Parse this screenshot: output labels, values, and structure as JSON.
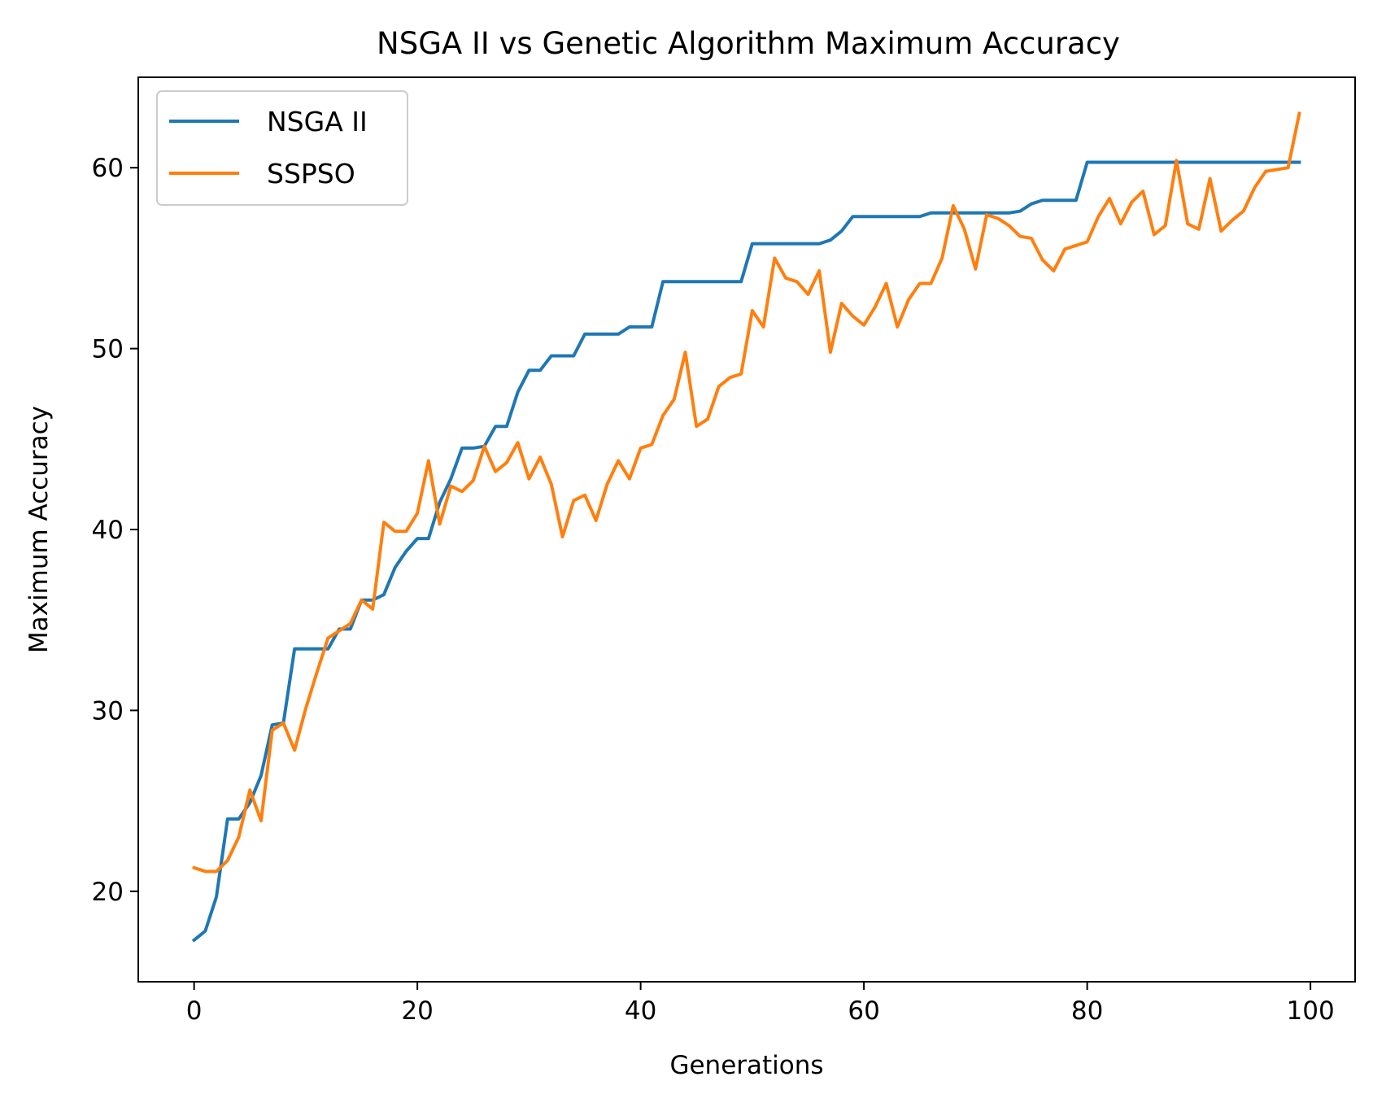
{
  "colors": {
    "nsga": "#1f77b4",
    "sspso": "#ff7f0e",
    "axis": "#000000",
    "background": "#ffffff",
    "legend_border": "#cccccc"
  },
  "chart_data": {
    "type": "line",
    "title": "NSGA II vs Genetic Algorithm Maximum Accuracy",
    "xlabel": "Generations",
    "ylabel": "Maximum Accuracy",
    "xlim": [
      -5,
      104
    ],
    "ylim": [
      15,
      65
    ],
    "xticks": [
      0,
      20,
      40,
      60,
      80,
      100
    ],
    "yticks": [
      20,
      30,
      40,
      50,
      60
    ],
    "grid": false,
    "legend_position": "top-left",
    "x": [
      0,
      1,
      2,
      3,
      4,
      5,
      6,
      7,
      8,
      9,
      10,
      11,
      12,
      13,
      14,
      15,
      16,
      17,
      18,
      19,
      20,
      21,
      22,
      23,
      24,
      25,
      26,
      27,
      28,
      29,
      30,
      31,
      32,
      33,
      34,
      35,
      36,
      37,
      38,
      39,
      40,
      41,
      42,
      43,
      44,
      45,
      46,
      47,
      48,
      49,
      50,
      51,
      52,
      53,
      54,
      55,
      56,
      57,
      58,
      59,
      60,
      61,
      62,
      63,
      64,
      65,
      66,
      67,
      68,
      69,
      70,
      71,
      72,
      73,
      74,
      75,
      76,
      77,
      78,
      79,
      80,
      81,
      82,
      83,
      84,
      85,
      86,
      87,
      88,
      89,
      90,
      91,
      92,
      93,
      94,
      95,
      96,
      97,
      98,
      99
    ],
    "series": [
      {
        "name": "NSGA II",
        "color": "#1f77b4",
        "values": [
          17.3,
          17.8,
          19.7,
          24.0,
          24.0,
          24.9,
          26.4,
          29.2,
          29.3,
          33.4,
          33.4,
          33.4,
          33.4,
          34.5,
          34.5,
          36.1,
          36.1,
          36.4,
          37.9,
          38.8,
          39.5,
          39.5,
          41.5,
          42.8,
          44.5,
          44.5,
          44.6,
          45.7,
          45.7,
          47.6,
          48.8,
          48.8,
          49.6,
          49.6,
          49.6,
          50.8,
          50.8,
          50.8,
          50.8,
          51.2,
          51.2,
          51.2,
          53.7,
          53.7,
          53.7,
          53.7,
          53.7,
          53.7,
          53.7,
          53.7,
          55.8,
          55.8,
          55.8,
          55.8,
          55.8,
          55.8,
          55.8,
          56.0,
          56.5,
          57.3,
          57.3,
          57.3,
          57.3,
          57.3,
          57.3,
          57.3,
          57.5,
          57.5,
          57.5,
          57.5,
          57.5,
          57.5,
          57.5,
          57.5,
          57.6,
          58.0,
          58.2,
          58.2,
          58.2,
          58.2,
          60.3,
          60.3,
          60.3,
          60.3,
          60.3,
          60.3,
          60.3,
          60.3,
          60.3,
          60.3,
          60.3,
          60.3,
          60.3,
          60.3,
          60.3,
          60.3,
          60.3,
          60.3,
          60.3,
          60.3
        ]
      },
      {
        "name": "SSPSO",
        "color": "#ff7f0e",
        "values": [
          21.3,
          21.1,
          21.1,
          21.7,
          23.0,
          25.6,
          23.9,
          28.9,
          29.3,
          27.8,
          30.1,
          32.1,
          34.0,
          34.4,
          34.8,
          36.1,
          35.6,
          40.4,
          39.9,
          39.9,
          40.9,
          43.8,
          40.3,
          42.4,
          42.1,
          42.7,
          44.6,
          43.2,
          43.7,
          44.8,
          42.8,
          44.0,
          42.5,
          39.6,
          41.6,
          41.9,
          40.5,
          42.5,
          43.8,
          42.8,
          44.5,
          44.7,
          46.3,
          47.2,
          49.8,
          45.7,
          46.1,
          47.9,
          48.4,
          48.6,
          52.1,
          51.2,
          55.0,
          53.9,
          53.7,
          53.0,
          54.3,
          49.8,
          52.5,
          51.8,
          51.3,
          52.3,
          53.6,
          51.2,
          52.7,
          53.6,
          53.6,
          55.0,
          57.9,
          56.6,
          54.4,
          57.4,
          57.2,
          56.8,
          56.2,
          56.1,
          54.9,
          54.3,
          55.5,
          55.7,
          55.9,
          57.3,
          58.3,
          56.9,
          58.1,
          58.7,
          56.3,
          56.8,
          60.4,
          56.9,
          56.6,
          59.4,
          56.5,
          57.1,
          57.6,
          58.9,
          59.8,
          59.9,
          60.0,
          63.0
        ]
      }
    ]
  }
}
